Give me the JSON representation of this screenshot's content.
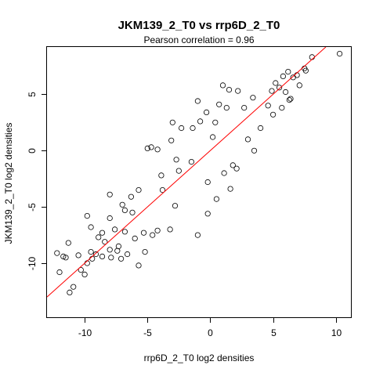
{
  "chart_data": {
    "type": "scatter",
    "title": "JKM139_2_T0 vs rrp6D_2_T0",
    "subtitle": "Pearson correlation =  0.96",
    "xlabel": "rrp6D_2_T0 log2 densities",
    "ylabel": "JKM139_2_T0 log2 densities",
    "xlim": [
      -13,
      11.2
    ],
    "ylim": [
      -14.8,
      9.2
    ],
    "xticks": [
      -10,
      -5,
      0,
      5,
      10
    ],
    "yticks": [
      -10,
      -5,
      0,
      5
    ],
    "grid": false,
    "legend": "none",
    "fit_line": {
      "slope": 1.0,
      "intercept": 0.0,
      "color": "#ff0000"
    },
    "point_color": "#000000",
    "series": [
      {
        "points": [
          [
            10.3,
            8.6
          ],
          [
            8.1,
            8.3
          ],
          [
            7.6,
            7.1
          ],
          [
            7.5,
            7.3
          ],
          [
            6.6,
            6.5
          ],
          [
            7.1,
            5.8
          ],
          [
            6.9,
            6.7
          ],
          [
            6.2,
            7.0
          ],
          [
            6.0,
            5.2
          ],
          [
            5.8,
            6.6
          ],
          [
            5.5,
            5.6
          ],
          [
            5.2,
            6.0
          ],
          [
            4.9,
            5.3
          ],
          [
            4.6,
            4.0
          ],
          [
            6.3,
            4.5
          ],
          [
            5.7,
            3.8
          ],
          [
            2.2,
            5.3
          ],
          [
            1.0,
            5.8
          ],
          [
            1.5,
            5.4
          ],
          [
            0.7,
            4.1
          ],
          [
            -1.0,
            4.4
          ],
          [
            -3.0,
            2.5
          ],
          [
            -5.0,
            0.2
          ],
          [
            -4.7,
            0.3
          ],
          [
            -1.5,
            -1.0
          ],
          [
            -3.8,
            -3.5
          ],
          [
            -2.5,
            -1.8
          ],
          [
            0.2,
            1.2
          ],
          [
            1.8,
            -1.3
          ],
          [
            3.0,
            1.0
          ],
          [
            4.0,
            2.0
          ],
          [
            5.0,
            3.2
          ],
          [
            3.4,
            4.7
          ],
          [
            2.7,
            3.8
          ],
          [
            6.4,
            4.6
          ],
          [
            -0.8,
            2.6
          ],
          [
            1.1,
            -2.0
          ],
          [
            2.1,
            -1.6
          ],
          [
            3.5,
            0.0
          ],
          [
            -6.2,
            -5.5
          ],
          [
            -7.0,
            -4.8
          ],
          [
            -8.0,
            -6.0
          ],
          [
            -6.0,
            -7.8
          ],
          [
            -5.3,
            -7.3
          ],
          [
            -4.6,
            -7.5
          ],
          [
            -6.8,
            -7.2
          ],
          [
            -7.3,
            -8.5
          ],
          [
            -8.4,
            -8.1
          ],
          [
            -8.9,
            -7.7
          ],
          [
            -9.1,
            -9.2
          ],
          [
            -9.8,
            -10.0
          ],
          [
            -10.3,
            -10.6
          ],
          [
            -10.9,
            -12.1
          ],
          [
            -11.5,
            -9.5
          ],
          [
            -11.7,
            -9.4
          ],
          [
            -11.3,
            -8.2
          ],
          [
            -12.0,
            -10.8
          ],
          [
            -11.2,
            -12.6
          ],
          [
            -10.0,
            -11.0
          ],
          [
            -9.4,
            -9.6
          ],
          [
            -8.6,
            -9.4
          ],
          [
            -7.9,
            -9.5
          ],
          [
            -7.1,
            -9.6
          ],
          [
            -5.7,
            -10.2
          ],
          [
            -5.2,
            -9.0
          ],
          [
            -4.2,
            -7.1
          ],
          [
            -3.2,
            -7.0
          ],
          [
            -1.0,
            -7.5
          ],
          [
            -0.2,
            -5.6
          ],
          [
            0.5,
            -4.3
          ],
          [
            1.6,
            -3.4
          ],
          [
            -0.2,
            -2.8
          ],
          [
            -2.8,
            -4.9
          ],
          [
            -6.8,
            -5.3
          ],
          [
            -9.8,
            -5.8
          ],
          [
            -8.0,
            -3.9
          ],
          [
            -6.3,
            -4.1
          ],
          [
            -5.7,
            -3.5
          ],
          [
            -3.9,
            -2.2
          ],
          [
            -2.7,
            -0.8
          ],
          [
            -3.1,
            0.9
          ],
          [
            -4.2,
            0.1
          ],
          [
            -2.3,
            2.0
          ],
          [
            -1.4,
            2.0
          ],
          [
            -0.3,
            3.4
          ],
          [
            0.4,
            2.5
          ],
          [
            1.3,
            3.8
          ],
          [
            -8.0,
            -8.8
          ],
          [
            -7.4,
            -8.9
          ],
          [
            -9.5,
            -9.0
          ],
          [
            -10.5,
            -9.3
          ],
          [
            -8.6,
            -7.3
          ],
          [
            -7.6,
            -7.0
          ],
          [
            -9.5,
            -6.8
          ],
          [
            -6.6,
            -9.2
          ],
          [
            -12.2,
            -9.1
          ]
        ]
      }
    ]
  }
}
